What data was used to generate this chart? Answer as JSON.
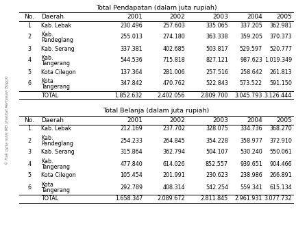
{
  "title1": "Total Pendapatan (dalam juta rupiah)",
  "title2": "Total Belanja (dalam juta rupiah)",
  "headers": [
    "No.",
    "Daerah",
    "2001",
    "2002",
    "2003",
    "2004",
    "2005"
  ],
  "pendapatan_rows": [
    [
      "1",
      "Kab. Lebak",
      "230.496",
      "257.603",
      "335.065",
      "337.205",
      "362.981"
    ],
    [
      "2",
      "Kab.\nPandeglang",
      "255.013",
      "274.180",
      "363.338",
      "359.205",
      "370.373"
    ],
    [
      "3",
      "Kab. Serang",
      "337.381",
      "402.685",
      "503.817",
      "529.597",
      "520.777"
    ],
    [
      "4",
      "Kab.\nTangerang",
      "544.536",
      "715.818",
      "827.121",
      "987.623",
      "1.019.349"
    ],
    [
      "5",
      "Kota Cilegon",
      "137.364",
      "281.006",
      "257.516",
      "258.642",
      "261.813"
    ],
    [
      "6",
      "Kota\nTangerang",
      "347.842",
      "470.762",
      "522.843",
      "573.522",
      "591.150"
    ],
    [
      "",
      "TOTAL",
      "1.852.632",
      "2.402.056",
      "2.809.700",
      "3.045.793",
      "3.126.444"
    ]
  ],
  "belanja_rows": [
    [
      "1",
      "Kab. Lebak",
      "212.169",
      "237.702",
      "328.075",
      "334.736",
      "368.270"
    ],
    [
      "2",
      "Kab.\nPandeglang",
      "254.233",
      "264.845",
      "354.228",
      "358.977",
      "372.910"
    ],
    [
      "3",
      "Kab. Serang",
      "315.864",
      "362.794",
      "504.107",
      "530.240",
      "550.061"
    ],
    [
      "4",
      "Kab.\nTangerang",
      "477.840",
      "614.026",
      "852.557",
      "939.651",
      "904.466"
    ],
    [
      "5",
      "Kota Cilegon",
      "105.454",
      "201.991",
      "230.623",
      "238.986",
      "266.891"
    ],
    [
      "6",
      "Kota\nTangerang",
      "292.789",
      "408.314",
      "542.254",
      "559.341",
      "615.134"
    ],
    [
      "",
      "TOTAL",
      "1.658.347",
      "2.089.672",
      "2.811.845",
      "2.961.931",
      "3.077.732"
    ]
  ],
  "watermark": "© Hak cipta milik IPB (Institut Pertanian Bogor)",
  "bg_color": "#ffffff",
  "text_color": "#000000",
  "line_color": "#000000",
  "font_size": 5.8,
  "title_font_size": 6.8,
  "header_font_size": 6.5
}
